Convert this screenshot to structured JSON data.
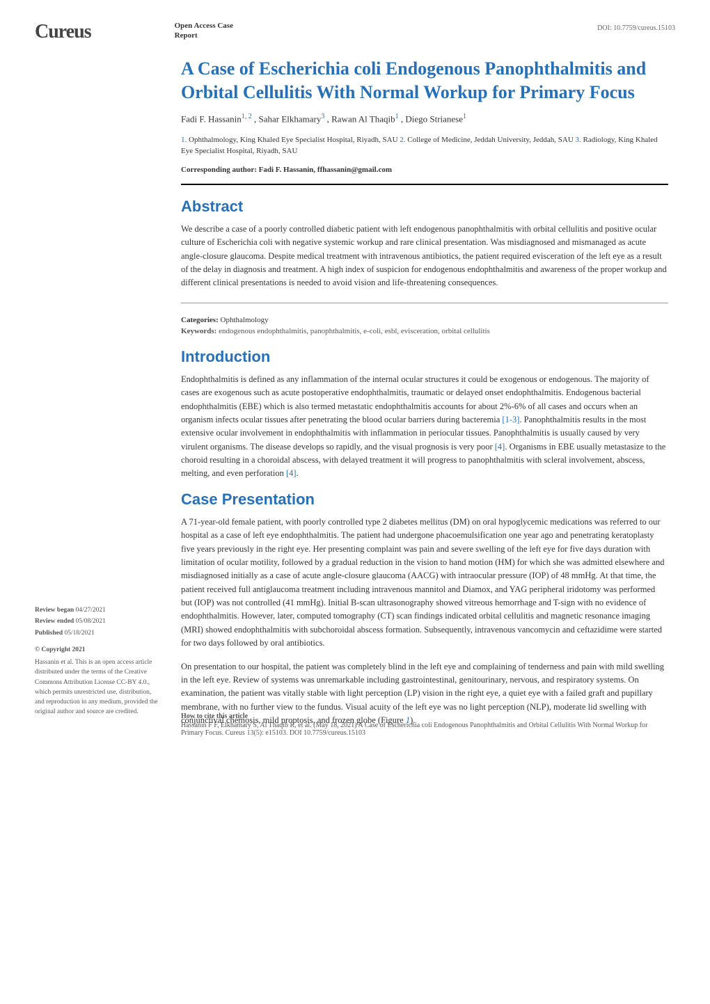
{
  "header": {
    "logo": "Cureus",
    "report_type_line1": "Open Access Case",
    "report_type_line2": "Report",
    "doi": "DOI: 10.7759/cureus.15103"
  },
  "title": "A Case of Escherichia coli Endogenous Panophthalmitis and Orbital Cellulitis With Normal Workup for Primary Focus",
  "authors": {
    "a1_name": "Fadi F. Hassanin",
    "a1_sup": "1, 2",
    "a2_name": "Sahar Elkhamary",
    "a2_sup": "3",
    "a3_name": "Rawan Al Thaqib",
    "a3_sup": "1",
    "a4_name": "Diego Strianese",
    "a4_sup": "1"
  },
  "affiliations": {
    "a1_num": "1.",
    "a1_text": " Ophthalmology, King Khaled Eye Specialist Hospital, Riyadh, SAU ",
    "a2_num": "2.",
    "a2_text": " College of Medicine, Jeddah University, Jeddah, SAU ",
    "a3_num": "3.",
    "a3_text": " Radiology, King Khaled Eye Specialist Hospital, Riyadh, SAU"
  },
  "corresponding": "Corresponding author: Fadi F. Hassanin, ffhassanin@gmail.com",
  "abstract": {
    "heading": "Abstract",
    "text": "We describe a case of a poorly controlled diabetic patient with left endogenous panophthalmitis with orbital cellulitis and positive ocular culture of Escherichia coli with negative systemic workup and rare clinical presentation. Was misdiagnosed and mismanaged as acute angle-closure glaucoma. Despite medical treatment with intravenous antibiotics, the patient required evisceration of the left eye as a result of the delay in diagnosis and treatment. A high index of suspicion for endogenous endophthalmitis and awareness of the proper workup and different clinical presentations is needed to avoid vision and life-threatening consequences."
  },
  "categories_label": "Categories:",
  "categories_value": " Ophthalmology",
  "keywords_label": "Keywords:",
  "keywords_value": " endogenous endophthalmitis, panophthalmitis, e-coli, esbl, evisceration, orbital cellulitis",
  "introduction": {
    "heading": "Introduction",
    "p1_a": "Endophthalmitis is defined as any inflammation of the internal ocular structures it could be exogenous or endogenous. The majority of cases are exogenous such as acute postoperative endophthalmitis, traumatic or delayed onset endophthalmitis. Endogenous bacterial endophthalmitis (EBE) which is also termed metastatic endophthalmitis accounts for about 2%-6% of all cases and occurs when an organism infects ocular tissues after penetrating the blood ocular barriers during bacteremia ",
    "ref1": "[1-3]",
    "p1_b": ". Panophthalmitis results in the most extensive ocular involvement in endophthalmitis with inflammation in periocular tissues. Panophthalmitis is usually caused by very virulent organisms. The disease develops so rapidly, and the visual prognosis is very poor ",
    "ref2": "[4]",
    "p1_c": ". Organisms in EBE usually metastasize to the choroid resulting in a choroidal abscess, with delayed treatment it will progress to panophthalmitis with scleral involvement, abscess, melting, and even perforation ",
    "ref3": "[4]",
    "p1_d": "."
  },
  "case": {
    "heading": "Case Presentation",
    "p1": "A 71-year-old female patient, with poorly controlled type 2 diabetes mellitus (DM) on oral hypoglycemic medications was referred to our hospital as a case of left eye endophthalmitis. The patient had undergone phacoemulsification one year ago and penetrating keratoplasty five years previously in the right eye. Her presenting complaint was pain and severe swelling of the left eye for five days duration with limitation of ocular motility, followed by a gradual reduction in the vision to hand motion (HM) for which she was admitted elsewhere and misdiagnosed initially as a case of acute angle-closure glaucoma (AACG) with intraocular pressure (IOP) of 48 mmHg. At that time, the patient received full antiglaucoma treatment including intravenous mannitol and Diamox, and YAG peripheral iridotomy was performed but (IOP) was not controlled (41 mmHg). Initial B-scan ultrasonography showed vitreous hemorrhage and T-sign with no evidence of endophthalmitis. However, later, computed tomography (CT) scan findings indicated orbital cellulitis and magnetic resonance imaging (MRI) showed endophthalmitis with subchoroidal abscess formation. Subsequently, intravenous vancomycin and ceftazidime were started for two days followed by oral antibiotics.",
    "p2_a": "On presentation to our hospital, the patient was completely blind in the left eye and complaining of tenderness and pain with mild swelling in the left eye. Review of systems was unremarkable including gastrointestinal, genitourinary, nervous, and respiratory systems. On examination, the patient was vitally stable with light perception (LP) vision in the right eye, a quiet eye with a failed graft and pupillary membrane, with no further view to the fundus. Visual acuity of the left eye was no light perception (NLP), moderate lid swelling with conjunctival chemosis, mild proptosis, and frozen globe (Figure ",
    "fig1": "1",
    "p2_b": ")."
  },
  "sidebar": {
    "review_began_label": "Review began ",
    "review_began_val": "04/27/2021",
    "review_ended_label": "Review ended ",
    "review_ended_val": "05/08/2021",
    "published_label": "Published ",
    "published_val": "05/18/2021",
    "copyright_heading": "© Copyright 2021",
    "copyright_text": "Hassanin et al. This is an open access article distributed under the terms of the Creative Commons Attribution License CC-BY 4.0., which permits unrestricted use, distribution, and reproduction in any medium, provided the original author and source are credited."
  },
  "footer": {
    "heading": "How to cite this article",
    "text": "Hassanin F F, Elkhamary S, Al Thaqib R, et al. (May 18, 2021) A Case of Escherichia coli Endogenous Panophthalmitis and Orbital Cellulitis With Normal Workup for Primary Focus. Cureus 13(5): e15103. DOI 10.7759/cureus.15103"
  },
  "colors": {
    "primary_blue": "#2570b8",
    "text": "#333333",
    "muted": "#666666",
    "background": "#ffffff"
  },
  "typography": {
    "title_fontsize": 26,
    "section_fontsize": 22,
    "body_fontsize": 12.5,
    "sidebar_fontsize": 9.5,
    "footer_fontsize": 10
  }
}
